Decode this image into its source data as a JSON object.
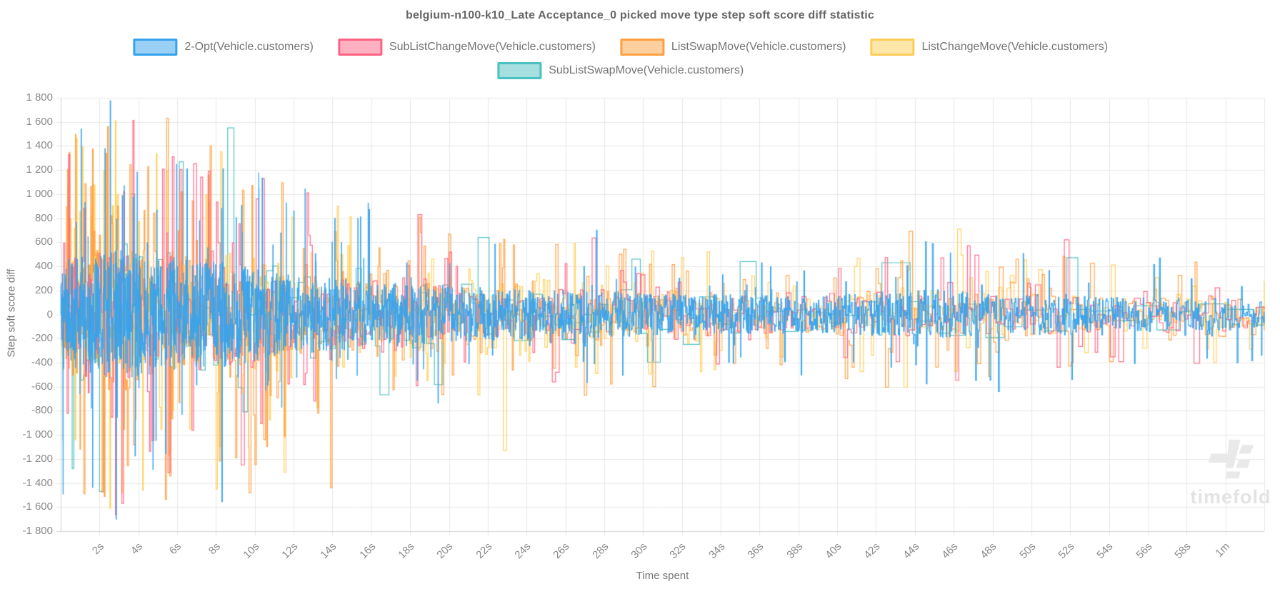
{
  "watermark": {
    "text": "timefold"
  },
  "chart_data": {
    "type": "line",
    "stepped": true,
    "title": "belgium-n100-k10_Late Acceptance_0 picked move type step soft score diff statistic",
    "xlabel": "Time spent",
    "ylabel": "Step soft score diff",
    "legend_position": "top",
    "grid": true,
    "ylim": [
      -1800,
      1800
    ],
    "y_tick_step": 200,
    "y_tick_labels": [
      "1 800",
      "1 600",
      "1 400",
      "1 200",
      "1 000",
      "800",
      "600",
      "400",
      "200",
      "0",
      "-200",
      "-400",
      "-600",
      "-800",
      "-1 000",
      "-1 200",
      "-1 400",
      "-1 600",
      "-1 800"
    ],
    "x_range_seconds": [
      0,
      62
    ],
    "x_tick_seconds": [
      2,
      4,
      6,
      8,
      10,
      12,
      14,
      16,
      18,
      20,
      22,
      24,
      26,
      28,
      30,
      32,
      34,
      36,
      38,
      40,
      42,
      44,
      46,
      48,
      50,
      52,
      54,
      56,
      58,
      60
    ],
    "x_tick_labels": [
      "2s",
      "4s",
      "6s",
      "8s",
      "10s",
      "12s",
      "14s",
      "16s",
      "18s",
      "20s",
      "22s",
      "24s",
      "26s",
      "28s",
      "30s",
      "32s",
      "34s",
      "36s",
      "38s",
      "40s",
      "42s",
      "44s",
      "46s",
      "48s",
      "50s",
      "52s",
      "54s",
      "56s",
      "58s",
      "1m"
    ],
    "colors": {
      "grid": "#e7e7e7",
      "axis_border": "#d2d2d2",
      "tick_text": "#8a8a8a",
      "title_text": "#666666",
      "legend_text": "#757575",
      "watermark": "#e9e9e9"
    },
    "description": "Very dense noisy step lines oscillating around 0; amplitude decays from about ±1800 in the first seconds to about ±400 near 60s. Reconstructed stochastically from amplitude_envelope plus the notable spikes listed per series.",
    "amplitude_envelope": [
      [
        0,
        1550
      ],
      [
        2,
        1700
      ],
      [
        3,
        1780
      ],
      [
        5,
        1650
      ],
      [
        7,
        1500
      ],
      [
        9,
        1430
      ],
      [
        11,
        1150
      ],
      [
        13,
        1050
      ],
      [
        15,
        980
      ],
      [
        17,
        900
      ],
      [
        19,
        830
      ],
      [
        21,
        760
      ],
      [
        23,
        720
      ],
      [
        25,
        660
      ],
      [
        27,
        700
      ],
      [
        29,
        620
      ],
      [
        31,
        560
      ],
      [
        33,
        570
      ],
      [
        35,
        545
      ],
      [
        37,
        525
      ],
      [
        39,
        505
      ],
      [
        41,
        570
      ],
      [
        43,
        660
      ],
      [
        45,
        705
      ],
      [
        47,
        610
      ],
      [
        49,
        530
      ],
      [
        51,
        610
      ],
      [
        53,
        490
      ],
      [
        55,
        470
      ],
      [
        57,
        480
      ],
      [
        59,
        455
      ],
      [
        62,
        440
      ]
    ],
    "series": [
      {
        "name": "2-Opt(Vehicle.customers)",
        "color": "#36a2eb",
        "legend_fill": "#9ad0f5",
        "seed": 101,
        "step_interval_s": 0.012,
        "interval_growth": 25,
        "core_fraction": 0.3,
        "spike_probability": 0.05,
        "peak_scale": 1.0,
        "notable_spikes": [
          [
            1.05,
            1540
          ],
          [
            2.55,
            1775
          ],
          [
            2.85,
            -1700
          ],
          [
            6.5,
            1210
          ],
          [
            8.3,
            -1555
          ],
          [
            10.2,
            1050
          ],
          [
            27.6,
            700
          ],
          [
            36.1,
            430
          ],
          [
            44.9,
            590
          ],
          [
            48.3,
            -640
          ],
          [
            56.6,
            470
          ]
        ]
      },
      {
        "name": "SubListChangeMove(Vehicle.customers)",
        "color": "#ff6384",
        "legend_fill": "#ffb1c1",
        "seed": 202,
        "step_interval_s": 0.06,
        "interval_growth": 20,
        "core_fraction": 0.33,
        "spike_probability": 0.17,
        "peak_scale": 0.95,
        "notable_spikes": [
          [
            3.15,
            -1570
          ],
          [
            5.75,
            1310
          ],
          [
            7.6,
            1190
          ],
          [
            9.3,
            -1250
          ],
          [
            18.4,
            830
          ],
          [
            29.9,
            330
          ],
          [
            51.7,
            620
          ]
        ]
      },
      {
        "name": "ListSwapMove(Vehicle.customers)",
        "color": "#ff9f40",
        "legend_fill": "#ffcf9f",
        "seed": 303,
        "step_interval_s": 0.042,
        "interval_growth": 20,
        "core_fraction": 0.33,
        "spike_probability": 0.22,
        "peak_scale": 0.97,
        "notable_spikes": [
          [
            0.35,
            1205
          ],
          [
            5.45,
            1630
          ],
          [
            9.7,
            -1480
          ],
          [
            13.9,
            -1440
          ],
          [
            30.5,
            -600
          ],
          [
            43.7,
            690
          ]
        ]
      },
      {
        "name": "ListChangeMove(Vehicle.customers)",
        "color": "#ffcd56",
        "legend_fill": "#ffe6aa",
        "seed": 404,
        "step_interval_s": 0.042,
        "interval_growth": 20,
        "core_fraction": 0.33,
        "spike_probability": 0.22,
        "peak_scale": 0.93,
        "notable_spikes": [
          [
            2.2,
            1190
          ],
          [
            8.0,
            -1450
          ],
          [
            11.5,
            -1310
          ],
          [
            22.8,
            -1130
          ],
          [
            33.3,
            520
          ],
          [
            46.2,
            710
          ]
        ]
      },
      {
        "name": "SubListSwapMove(Vehicle.customers)",
        "color": "#4bc0c0",
        "legend_fill": "#a5dfdf",
        "seed": 505,
        "step_interval_s": 0.11,
        "interval_growth": 7,
        "core_fraction": 0.38,
        "spike_probability": 0.12,
        "peak_scale": 0.9,
        "notable_spikes": [
          [
            2.0,
            -1470
          ],
          [
            8.6,
            1550
          ],
          [
            21.5,
            640
          ],
          [
            35.0,
            440
          ],
          [
            42.3,
            430
          ]
        ]
      }
    ]
  }
}
